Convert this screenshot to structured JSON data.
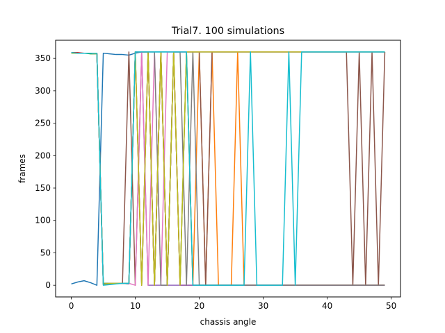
{
  "chart_data": {
    "type": "line",
    "title": "Trial7. 100 simulations",
    "xlabel": "chassis angle",
    "ylabel": "frames",
    "xlim": [
      -2.45,
      51.45
    ],
    "ylim": [
      -18,
      378
    ],
    "x_ticks": [
      0,
      10,
      20,
      30,
      40,
      50
    ],
    "y_ticks": [
      0,
      50,
      100,
      150,
      200,
      250,
      300,
      350
    ],
    "grid": false,
    "legend": "none",
    "x": [
      0,
      1,
      2,
      3,
      4,
      5,
      6,
      7,
      8,
      9,
      10,
      11,
      12,
      13,
      14,
      15,
      16,
      17,
      18,
      19,
      20,
      21,
      22,
      23,
      24,
      25,
      26,
      27,
      28,
      29,
      30,
      31,
      32,
      33,
      34,
      35,
      36,
      37,
      38,
      39,
      40,
      41,
      42,
      43,
      44,
      45,
      46,
      47,
      48,
      49
    ],
    "series": [
      {
        "color": "#1f77b4",
        "values": [
          2,
          5,
          7,
          4,
          0,
          358,
          357,
          356,
          356,
          355,
          358,
          360,
          360,
          360,
          360,
          360,
          360,
          360,
          360,
          360,
          360,
          360,
          360,
          360,
          360,
          360,
          360,
          360,
          360,
          360,
          360,
          360,
          360,
          360,
          360,
          360,
          360,
          360,
          360,
          360,
          360,
          360,
          360,
          360,
          360,
          360,
          360,
          360,
          360,
          360
        ]
      },
      {
        "color": "#ff7f0e",
        "values": [
          359,
          358,
          358,
          358,
          358,
          2,
          3,
          3,
          3,
          3,
          360,
          360,
          360,
          0,
          360,
          0,
          360,
          0,
          360,
          0,
          360,
          0,
          360,
          0,
          0,
          0,
          360,
          0,
          0,
          0,
          0,
          0,
          0,
          0,
          0,
          0,
          0,
          0,
          0,
          0,
          0,
          0,
          0,
          0,
          0,
          0,
          0,
          0,
          0,
          0
        ]
      },
      {
        "color": "#2ca02c",
        "values": [
          358,
          358,
          358,
          357,
          357,
          3,
          3,
          3,
          3,
          2,
          360,
          0,
          360,
          0,
          360,
          0,
          360,
          0,
          360,
          0,
          0,
          0,
          0,
          0,
          0,
          0,
          0,
          0,
          0,
          0,
          0,
          0,
          0,
          0,
          0,
          0,
          0,
          0,
          0,
          0,
          0,
          0,
          0,
          0,
          0,
          0,
          0,
          0,
          0,
          0
        ]
      },
      {
        "color": "#d62728",
        "values": [
          359,
          359,
          358,
          358,
          358,
          2,
          2,
          3,
          3,
          3,
          360,
          0,
          360,
          0,
          360,
          0,
          360,
          0,
          0,
          0,
          0,
          0,
          0,
          0,
          0,
          0,
          0,
          0,
          0,
          0,
          0,
          0,
          0,
          0,
          0,
          0,
          0,
          0,
          0,
          0,
          0,
          0,
          0,
          0,
          0,
          0,
          0,
          0,
          0,
          0
        ]
      },
      {
        "color": "#9467bd",
        "values": [
          358,
          358,
          358,
          358,
          357,
          2,
          3,
          3,
          3,
          2,
          360,
          360,
          0,
          0,
          0,
          0,
          0,
          0,
          0,
          0,
          0,
          0,
          0,
          0,
          0,
          0,
          0,
          0,
          0,
          0,
          0,
          0,
          0,
          0,
          0,
          0,
          0,
          0,
          0,
          0,
          0,
          0,
          0,
          0,
          0,
          0,
          0,
          0,
          0,
          0
        ]
      },
      {
        "color": "#8c564b",
        "values": [
          359,
          358,
          358,
          358,
          357,
          1,
          2,
          3,
          3,
          360,
          0,
          360,
          360,
          0,
          360,
          0,
          360,
          360,
          360,
          360,
          360,
          0,
          360,
          360,
          360,
          360,
          360,
          360,
          360,
          360,
          360,
          360,
          360,
          360,
          360,
          360,
          360,
          360,
          360,
          360,
          360,
          360,
          360,
          360,
          0,
          360,
          0,
          360,
          0,
          360
        ]
      },
      {
        "color": "#e377c2",
        "values": [
          358,
          358,
          358,
          358,
          357,
          2,
          3,
          3,
          3,
          3,
          0,
          360,
          0,
          360,
          0,
          360,
          360,
          360,
          360,
          360,
          360,
          360,
          360,
          360,
          360,
          360,
          360,
          360,
          360,
          360,
          360,
          360,
          360,
          360,
          360,
          360,
          360,
          360,
          360,
          360,
          360,
          360,
          360,
          360,
          360,
          360,
          360,
          360,
          360,
          360
        ]
      },
      {
        "color": "#7f7f7f",
        "values": [
          358,
          358,
          358,
          358,
          357,
          2,
          3,
          3,
          3,
          3,
          360,
          360,
          360,
          360,
          0,
          0,
          360,
          360,
          0,
          360,
          0,
          0,
          0,
          0,
          0,
          0,
          0,
          0,
          0,
          0,
          0,
          0,
          0,
          0,
          0,
          0,
          0,
          0,
          0,
          0,
          0,
          0,
          0,
          0,
          0,
          0,
          0,
          0,
          0,
          0
        ]
      },
      {
        "color": "#bcbd22",
        "values": [
          358,
          358,
          358,
          358,
          357,
          2,
          3,
          3,
          3,
          3,
          360,
          0,
          360,
          0,
          360,
          0,
          360,
          0,
          360,
          360,
          360,
          360,
          360,
          360,
          360,
          360,
          360,
          360,
          360,
          360,
          360,
          360,
          360,
          360,
          360,
          360,
          360,
          360,
          360,
          360,
          360,
          360,
          360,
          360,
          360,
          360,
          360,
          360,
          360,
          360
        ]
      },
      {
        "color": "#17becf",
        "values": [
          359,
          358,
          358,
          358,
          358,
          0,
          1,
          2,
          3,
          3,
          360,
          360,
          360,
          360,
          360,
          360,
          360,
          360,
          360,
          0,
          0,
          0,
          0,
          0,
          0,
          0,
          0,
          0,
          360,
          0,
          0,
          0,
          0,
          0,
          360,
          0,
          360,
          360,
          360,
          360,
          360,
          360,
          360,
          360,
          360,
          360,
          360,
          360,
          360,
          360
        ]
      }
    ]
  }
}
